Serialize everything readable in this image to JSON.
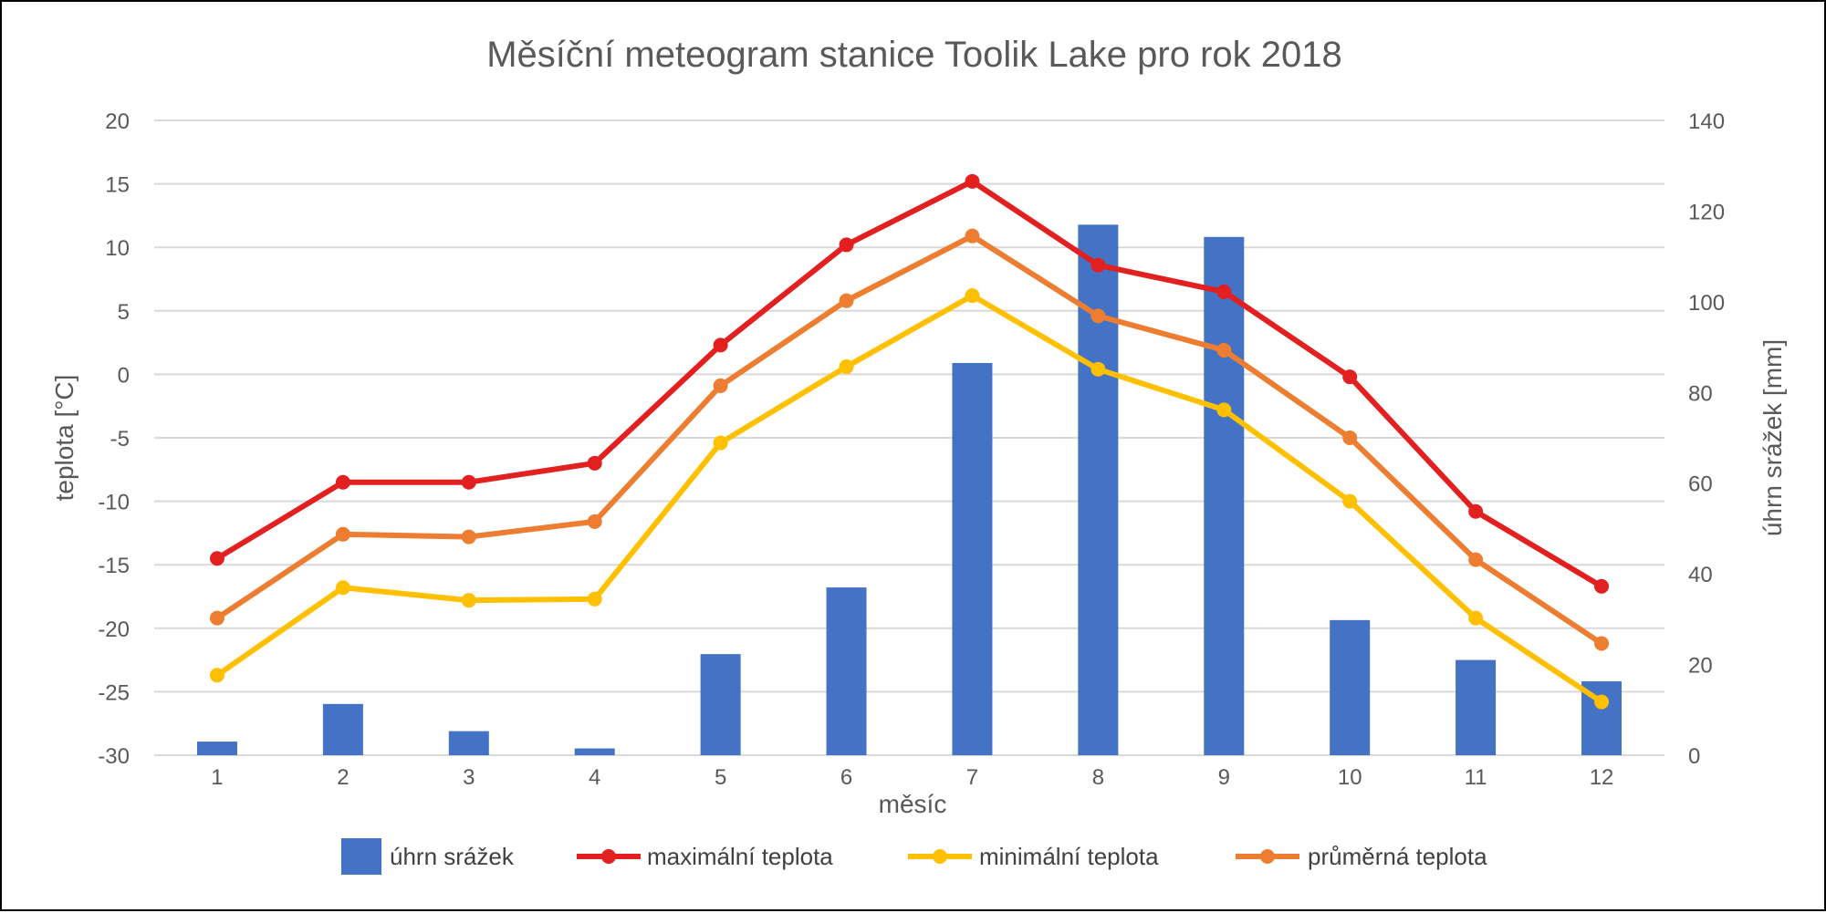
{
  "chart_data": {
    "type": "bar+line",
    "title": "Měsíční meteogram stanice Toolik Lake pro rok 2018",
    "xlabel": "měsíc",
    "ylabel_left": "teplota [°C]",
    "ylabel_right": "úhrn srážek [mm]",
    "categories": [
      "1",
      "2",
      "3",
      "4",
      "5",
      "6",
      "7",
      "8",
      "9",
      "10",
      "11",
      "12"
    ],
    "y_left": {
      "min": -30,
      "max": 20,
      "step": 5,
      "ticks": [
        "-30",
        "-25",
        "-20",
        "-15",
        "-10",
        "-5",
        "0",
        "5",
        "10",
        "15",
        "20"
      ]
    },
    "y_right": {
      "min": 0,
      "max": 140,
      "step": 20,
      "ticks": [
        "0",
        "20",
        "40",
        "60",
        "80",
        "100",
        "120",
        "140"
      ]
    },
    "grid": true,
    "legend_position": "bottom",
    "series": [
      {
        "name": "úhrn srážek",
        "type": "bar",
        "axis": "right",
        "color": "#4472C4",
        "values": [
          3,
          11.3,
          5.3,
          1.5,
          22.3,
          37,
          86.5,
          117,
          114.3,
          29.8,
          21,
          16.3
        ]
      },
      {
        "name": "maximální teplota",
        "type": "line",
        "axis": "left",
        "color": "#E32020",
        "values": [
          -14.5,
          -8.5,
          -8.5,
          -7,
          2.3,
          10.2,
          15.2,
          8.6,
          6.5,
          -0.2,
          -10.8,
          -16.7
        ]
      },
      {
        "name": "minimální teplota",
        "type": "line",
        "axis": "left",
        "color": "#FFC000",
        "values": [
          -23.7,
          -16.8,
          -17.8,
          -17.7,
          -5.4,
          0.6,
          6.2,
          0.4,
          -2.8,
          -10,
          -19.2,
          -25.8
        ]
      },
      {
        "name": "průměrná teplota",
        "type": "line",
        "axis": "left",
        "color": "#ED7D31",
        "values": [
          -19.2,
          -12.6,
          -12.8,
          -11.6,
          -0.9,
          5.8,
          10.9,
          4.6,
          1.9,
          -5,
          -14.6,
          -21.2
        ]
      }
    ]
  }
}
